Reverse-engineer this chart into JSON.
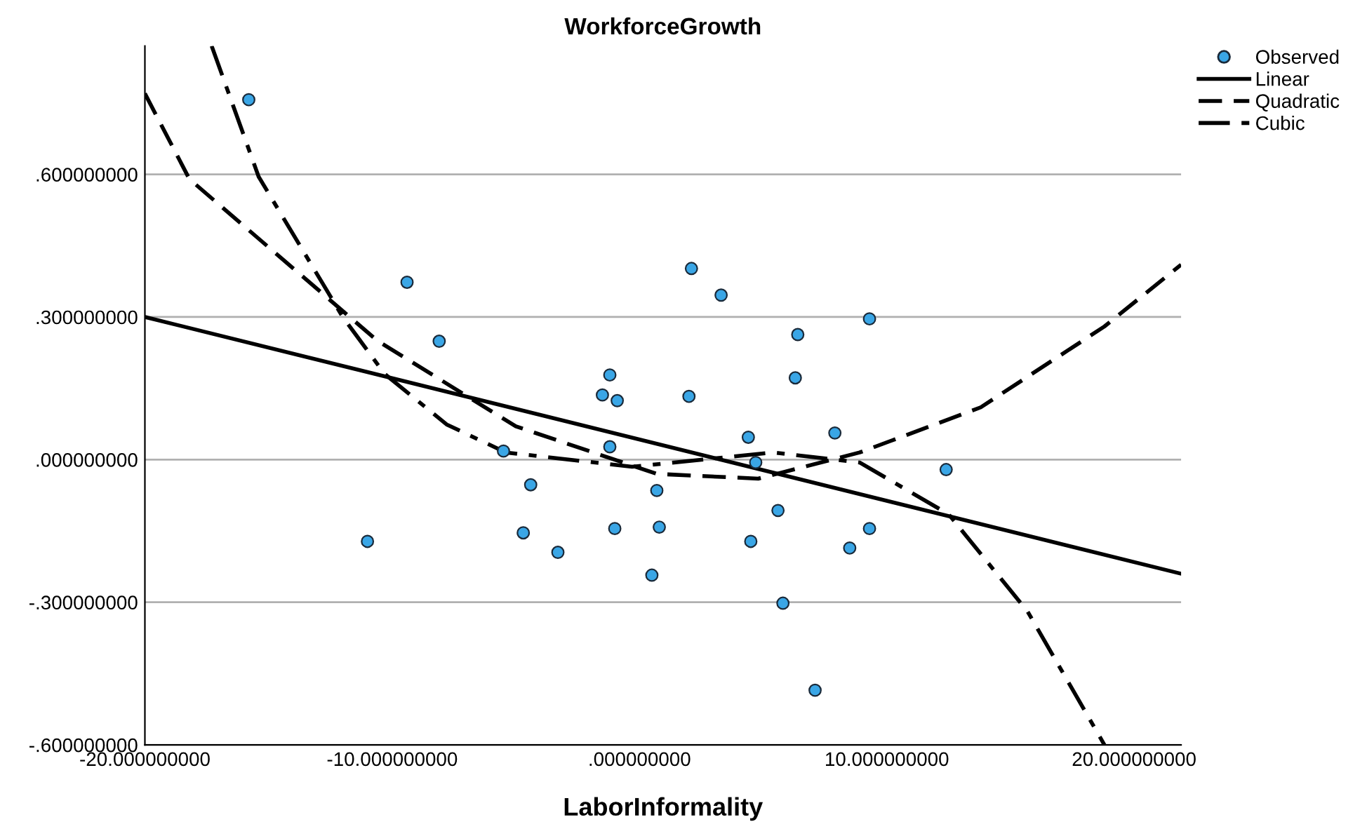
{
  "chart_data": {
    "type": "scatter",
    "title": "WorkforceGrowth",
    "xlabel": "LaborInformality",
    "xlim": [
      -20,
      21.9
    ],
    "ylim": [
      -0.6,
      0.87
    ],
    "xticks": [
      {
        "value": -20,
        "label": "-20.000000000"
      },
      {
        "value": -10,
        "label": "-10.000000000"
      },
      {
        "value": 0,
        "label": ".000000000"
      },
      {
        "value": 10,
        "label": "10.000000000"
      },
      {
        "value": 20,
        "label": "20.000000000"
      }
    ],
    "yticks": [
      {
        "value": -0.6,
        "label": "-.600000000"
      },
      {
        "value": -0.3,
        "label": "-.300000000"
      },
      {
        "value": 0,
        "label": ".000000000"
      },
      {
        "value": 0.3,
        "label": ".300000000"
      },
      {
        "value": 0.6,
        "label": ".600000000"
      }
    ],
    "grid": "y",
    "legend": "top right",
    "series": [
      {
        "name": "Observed",
        "marker": "circle",
        "color": "#3aa6e6",
        "x": [
          -15.8,
          -9.4,
          -8.1,
          -11.0,
          -5.5,
          -4.4,
          -4.7,
          -3.3,
          -1.5,
          -1.2,
          -0.9,
          -1.2,
          -1.0,
          0.7,
          0.8,
          0.5,
          2.1,
          2.0,
          3.3,
          4.4,
          4.7,
          4.5,
          6.4,
          6.3,
          5.6,
          5.8,
          7.1,
          7.9,
          8.5,
          9.3,
          9.3,
          12.4
        ],
        "values": [
          0.757,
          0.373,
          0.249,
          -0.172,
          0.018,
          -0.053,
          -0.154,
          -0.195,
          0.136,
          0.178,
          0.124,
          0.027,
          -0.145,
          -0.065,
          -0.142,
          -0.243,
          0.402,
          0.133,
          0.346,
          0.047,
          -0.006,
          -0.172,
          0.263,
          0.172,
          -0.107,
          -0.302,
          -0.485,
          0.056,
          -0.186,
          0.296,
          -0.145,
          -0.021
        ]
      },
      {
        "name": "Linear",
        "type": "line",
        "line_style": "solid",
        "color": "#000000",
        "x": [
          -20,
          21.9
        ],
        "values": [
          0.3,
          -0.24
        ]
      },
      {
        "name": "Quadratic",
        "type": "line",
        "line_style": "dashed",
        "color": "#000000",
        "x": [
          -20,
          -18.2,
          -14.4,
          -10.6,
          -5.0,
          0.7,
          4.8,
          8.9,
          13.8,
          18.8,
          21.9
        ],
        "values": [
          0.77,
          0.59,
          0.42,
          0.25,
          0.07,
          -0.03,
          -0.04,
          0.015,
          0.11,
          0.28,
          0.41
        ]
      },
      {
        "name": "Cubic",
        "type": "line",
        "line_style": "dashdot",
        "color": "#000000",
        "x": [
          -17.3,
          -15.4,
          -12.0,
          -10.3,
          -7.8,
          -5.4,
          -0.3,
          5.4,
          8.9,
          12.5,
          15.7,
          18.8
        ],
        "values": [
          0.87,
          0.595,
          0.3,
          0.18,
          0.074,
          0.015,
          -0.015,
          0.015,
          -0.006,
          -0.115,
          -0.32,
          -0.6
        ]
      }
    ]
  }
}
